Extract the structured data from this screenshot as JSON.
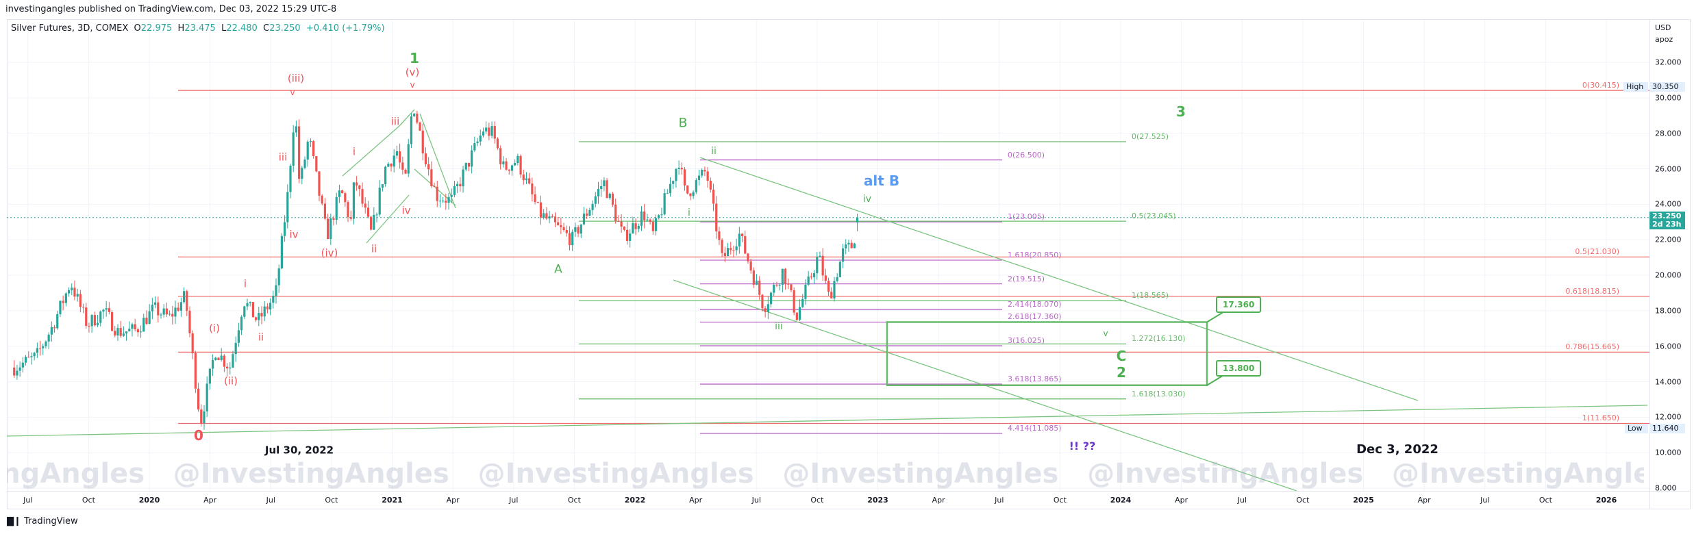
{
  "header": {
    "publisher_line": "investingangles published on TradingView.com, Dec 03, 2022 15:29 UTC-8"
  },
  "legend": {
    "symbol": "Silver Futures, 3D, COMEX",
    "open_prefix": "O",
    "open": "22.975",
    "high_prefix": "H",
    "high": "23.475",
    "low_prefix": "L",
    "low": "22.480",
    "close_prefix": "C",
    "close": "23.250",
    "change": "+0.410 (+1.79%)"
  },
  "price_axis": {
    "currency": "USD",
    "unit": "apoz",
    "ticks": [
      "32.000",
      "30.000",
      "28.000",
      "26.000",
      "24.000",
      "22.000",
      "20.000",
      "18.000",
      "16.000",
      "14.000",
      "12.000",
      "10.000",
      "8.000"
    ],
    "last_price": "23.250",
    "countdown": "2d 23h",
    "high_label": "High",
    "high_value": "30.350",
    "low_label": "Low",
    "low_value": "11.640"
  },
  "time_axis": {
    "ticks": [
      "Jul",
      "Oct",
      "2020",
      "Apr",
      "Jul",
      "Oct",
      "2021",
      "Apr",
      "Jul",
      "Oct",
      "2022",
      "Apr",
      "Jul",
      "Oct",
      "2023",
      "Apr",
      "Jul",
      "Oct",
      "2024",
      "Apr",
      "Jul",
      "Oct",
      "2025",
      "Apr",
      "Jul",
      "Oct",
      "2026"
    ]
  },
  "wave_labels": {
    "zero": "0",
    "i1": "(i)",
    "ii1": "(ii)",
    "i2": "i",
    "ii2": "ii",
    "iii_small": "iii",
    "iv_small": "iv",
    "iii_paren": "(iii)",
    "v_mark1": "v",
    "iv_paren": "(iv)",
    "i3": "i",
    "ii3": "ii",
    "iii3": "iii",
    "iv3": "iv",
    "v_paren": "(v)",
    "v_mark2": "v",
    "one": "1",
    "A": "A",
    "B": "B",
    "g_i": "i",
    "g_ii": "ii",
    "g_iii": "iii",
    "g_iv": "iv",
    "alt_b": "alt B",
    "g_v": "v",
    "C": "C",
    "two": "2",
    "three": "3",
    "question": "!! ??"
  },
  "annotations": {
    "date_left": "Jul 30, 2022",
    "date_right": "Dec 3, 2022",
    "box_top": "17.360",
    "box_bottom": "13.800"
  },
  "watermark": "@InvestingAngles",
  "footer": {
    "logo_text": "TradingView"
  },
  "colors": {
    "up": "#26a69a",
    "down": "#ef5350",
    "fib_red": "#ef6c6c",
    "fib_purple": "#ba68c8",
    "fib_green": "#66bb6a",
    "alt_b": "#5b9cf0",
    "question": "#6a35c9"
  },
  "chart_data": {
    "type": "candlestick",
    "title": "Silver Futures, 3D, COMEX",
    "ylim": [
      8,
      32.8
    ],
    "xlim": [
      "2019-06-01",
      "2026-02-15"
    ],
    "last_bar": {
      "open": 22.975,
      "high": 23.475,
      "low": 22.48,
      "close": 23.25
    },
    "price_path": [
      [
        "2019-06-12",
        14.8
      ],
      [
        "2019-07-15",
        15.4
      ],
      [
        "2019-08-07",
        17.0
      ],
      [
        "2019-09-05",
        19.6
      ],
      [
        "2019-09-30",
        17.2
      ],
      [
        "2019-10-25",
        18.0
      ],
      [
        "2019-11-15",
        16.8
      ],
      [
        "2019-12-12",
        16.9
      ],
      [
        "2020-01-08",
        18.1
      ],
      [
        "2020-01-31",
        17.6
      ],
      [
        "2020-02-24",
        18.8
      ],
      [
        "2020-03-18",
        11.7
      ],
      [
        "2020-04-09",
        15.8
      ],
      [
        "2020-05-01",
        14.8
      ],
      [
        "2020-05-22",
        18.6
      ],
      [
        "2020-06-12",
        17.4
      ],
      [
        "2020-07-09",
        18.9
      ],
      [
        "2020-07-27",
        24.5
      ],
      [
        "2020-08-07",
        29.5
      ],
      [
        "2020-08-14",
        25.0
      ],
      [
        "2020-08-28",
        27.8
      ],
      [
        "2020-09-24",
        22.2
      ],
      [
        "2020-10-15",
        24.8
      ],
      [
        "2020-10-30",
        23.0
      ],
      [
        "2020-11-05",
        25.5
      ],
      [
        "2020-11-30",
        22.3
      ],
      [
        "2020-12-20",
        26.0
      ],
      [
        "2021-01-08",
        27.0
      ],
      [
        "2021-01-20",
        25.0
      ],
      [
        "2021-02-01",
        29.8
      ],
      [
        "2021-02-18",
        27.0
      ],
      [
        "2021-03-08",
        24.5
      ],
      [
        "2021-03-31",
        24.2
      ],
      [
        "2021-05-18",
        28.2
      ],
      [
        "2021-06-01",
        28.0
      ],
      [
        "2021-06-18",
        26.0
      ],
      [
        "2021-07-08",
        26.5
      ],
      [
        "2021-08-10",
        23.5
      ],
      [
        "2021-09-29",
        22.0
      ],
      [
        "2021-11-15",
        25.3
      ],
      [
        "2021-12-15",
        22.1
      ],
      [
        "2022-01-14",
        23.5
      ],
      [
        "2022-01-28",
        22.3
      ],
      [
        "2022-03-08",
        26.5
      ],
      [
        "2022-03-18",
        24.5
      ],
      [
        "2022-04-18",
        25.9
      ],
      [
        "2022-05-12",
        20.9
      ],
      [
        "2022-06-07",
        22.3
      ],
      [
        "2022-07-14",
        18.2
      ],
      [
        "2022-08-12",
        20.3
      ],
      [
        "2022-09-01",
        17.7
      ],
      [
        "2022-10-04",
        21.1
      ],
      [
        "2022-10-20",
        18.7
      ],
      [
        "2022-11-10",
        21.3
      ],
      [
        "2022-11-25",
        21.7
      ],
      [
        "2022-12-02",
        23.25
      ]
    ],
    "fib_sets": [
      {
        "name": "retracement-red",
        "color": "#ef6c6c",
        "levels": [
          {
            "label": "0(30.415)",
            "price": 30.415
          },
          {
            "label": "0.5(21.030)",
            "price": 21.03
          },
          {
            "label": "0.618(18.815)",
            "price": 18.815
          },
          {
            "label": "0.786(15.665)",
            "price": 15.665
          },
          {
            "label": "1(11.650)",
            "price": 11.65
          }
        ]
      },
      {
        "name": "extension-purple",
        "color": "#ba68c8",
        "levels": [
          {
            "label": "0(26.500)",
            "price": 26.5
          },
          {
            "label": "1(23.005)",
            "price": 23.005
          },
          {
            "label": "1.618(20.850)",
            "price": 20.85
          },
          {
            "label": "2(19.515)",
            "price": 19.515
          },
          {
            "label": "2.414(18.070)",
            "price": 18.07
          },
          {
            "label": "2.618(17.360)",
            "price": 17.36
          },
          {
            "label": "3(16.025)",
            "price": 16.025
          },
          {
            "label": "3.618(13.865)",
            "price": 13.865
          },
          {
            "label": "4.414(11.085)",
            "price": 11.085
          }
        ]
      },
      {
        "name": "extension-green",
        "color": "#66bb6a",
        "levels": [
          {
            "label": "0(27.525)",
            "price": 27.525
          },
          {
            "label": "0.5(23.045)",
            "price": 23.045
          },
          {
            "label": "1(18.565)",
            "price": 18.565
          },
          {
            "label": "1.272(16.130)",
            "price": 16.13
          },
          {
            "label": "1.618(13.030)",
            "price": 13.03
          }
        ]
      }
    ],
    "target_zone": {
      "top": 17.36,
      "bottom": 13.8
    }
  }
}
